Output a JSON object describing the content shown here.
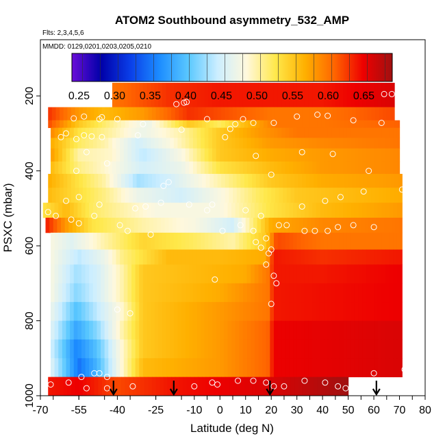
{
  "chart_data": {
    "type": "heatmap",
    "title": "ATOM2 Southbound asymmetry_532_AMP",
    "subtitle_flights": "Flts: 2,3,4,5,6",
    "subtitle_dates": "MMDD: 0129,0201,0203,0205,0210",
    "xlabel": "Latitude (deg N)",
    "ylabel": "PSXC (mbar)",
    "xlim": [
      -70,
      80
    ],
    "ylim": [
      1000,
      50
    ],
    "x_ticks": [
      "-70",
      "-55",
      "-40",
      "-25",
      "-10",
      "0",
      "10",
      "20",
      "30",
      "40",
      "50",
      "60",
      "70",
      "80"
    ],
    "x_tick_values": [
      -70,
      -55,
      -40,
      -25,
      -10,
      0,
      10,
      20,
      30,
      40,
      50,
      60,
      70,
      80
    ],
    "y_ticks": [
      "200",
      "400",
      "600",
      "800",
      "1000"
    ],
    "y_tick_values": [
      200,
      400,
      600,
      800,
      1000
    ],
    "colorbar": {
      "min": 0.24,
      "max": 0.69,
      "ticks": [
        "0.25",
        "0.30",
        "0.35",
        "0.40",
        "0.45",
        "0.50",
        "0.55",
        "0.60",
        "0.65"
      ],
      "tick_values": [
        0.25,
        0.3,
        0.35,
        0.4,
        0.45,
        0.5,
        0.55,
        0.6,
        0.65
      ],
      "stops": [
        "#6a0dd8",
        "#0000a8",
        "#0a3ee8",
        "#1c8cff",
        "#5ac8ff",
        "#cceeff",
        "#fff8dc",
        "#ffe84a",
        "#ffb000",
        "#ff6600",
        "#ee0000",
        "#a01010"
      ]
    },
    "bands": [
      {
        "p0": 165,
        "p1": 230,
        "lat0": -42,
        "lat1": 68,
        "pts": [
          [
            -42,
            0.6
          ],
          [
            -20,
            0.63
          ],
          [
            0,
            0.64
          ],
          [
            40,
            0.64
          ],
          [
            68,
            0.66
          ]
        ]
      },
      {
        "p0": 230,
        "p1": 265,
        "lat0": -67,
        "lat1": 68,
        "pts": [
          [
            -67,
            0.63
          ],
          [
            -55,
            0.58
          ],
          [
            -45,
            0.56
          ],
          [
            -30,
            0.58
          ],
          [
            -12,
            0.63
          ],
          [
            20,
            0.6
          ],
          [
            40,
            0.6
          ],
          [
            68,
            0.62
          ]
        ]
      },
      {
        "p0": 265,
        "p1": 285,
        "lat0": -67,
        "lat1": 70,
        "pts": [
          [
            -67,
            0.62
          ],
          [
            -55,
            0.55
          ],
          [
            -40,
            0.5
          ],
          [
            -28,
            0.47
          ],
          [
            -12,
            0.55
          ],
          [
            0,
            0.52
          ],
          [
            10,
            0.56
          ],
          [
            22,
            0.6
          ],
          [
            40,
            0.6
          ],
          [
            70,
            0.61
          ]
        ]
      },
      {
        "p0": 285,
        "p1": 312,
        "lat0": -66,
        "lat1": 70,
        "pts": [
          [
            -66,
            0.59
          ],
          [
            -55,
            0.53
          ],
          [
            -42,
            0.5
          ],
          [
            -30,
            0.47
          ],
          [
            -15,
            0.5
          ],
          [
            0,
            0.55
          ],
          [
            15,
            0.58
          ],
          [
            30,
            0.6
          ],
          [
            70,
            0.6
          ]
        ]
      },
      {
        "p0": 312,
        "p1": 340,
        "lat0": -66,
        "lat1": 70,
        "pts": [
          [
            -66,
            0.57
          ],
          [
            -55,
            0.52
          ],
          [
            -45,
            0.5
          ],
          [
            -32,
            0.45
          ],
          [
            -20,
            0.48
          ],
          [
            0,
            0.55
          ],
          [
            20,
            0.58
          ],
          [
            40,
            0.59
          ],
          [
            70,
            0.6
          ]
        ]
      },
      {
        "p0": 340,
        "p1": 375,
        "lat0": -66,
        "lat1": 70,
        "pts": [
          [
            -66,
            0.58
          ],
          [
            -55,
            0.5
          ],
          [
            -42,
            0.49
          ],
          [
            -30,
            0.44
          ],
          [
            -15,
            0.48
          ],
          [
            0,
            0.55
          ],
          [
            20,
            0.57
          ],
          [
            40,
            0.58
          ],
          [
            70,
            0.59
          ]
        ]
      },
      {
        "p0": 375,
        "p1": 408,
        "lat0": -66,
        "lat1": 70,
        "pts": [
          [
            -66,
            0.56
          ],
          [
            -55,
            0.51
          ],
          [
            -45,
            0.49
          ],
          [
            -30,
            0.45
          ],
          [
            -15,
            0.47
          ],
          [
            0,
            0.53
          ],
          [
            20,
            0.56
          ],
          [
            40,
            0.58
          ],
          [
            70,
            0.59
          ]
        ]
      },
      {
        "p0": 408,
        "p1": 445,
        "lat0": -67,
        "lat1": 71,
        "pts": [
          [
            -67,
            0.57
          ],
          [
            -55,
            0.53
          ],
          [
            -45,
            0.5
          ],
          [
            -32,
            0.43
          ],
          [
            -20,
            0.45
          ],
          [
            0,
            0.5
          ],
          [
            20,
            0.55
          ],
          [
            40,
            0.57
          ],
          [
            71,
            0.58
          ]
        ]
      },
      {
        "p0": 445,
        "p1": 485,
        "lat0": -67,
        "lat1": 71,
        "pts": [
          [
            -67,
            0.56
          ],
          [
            -58,
            0.54
          ],
          [
            -45,
            0.51
          ],
          [
            -32,
            0.47
          ],
          [
            -15,
            0.45
          ],
          [
            0,
            0.48
          ],
          [
            15,
            0.52
          ],
          [
            30,
            0.55
          ],
          [
            71,
            0.57
          ]
        ]
      },
      {
        "p0": 485,
        "p1": 525,
        "lat0": -69,
        "lat1": 71,
        "pts": [
          [
            -69,
            0.53
          ],
          [
            -60,
            0.56
          ],
          [
            -50,
            0.52
          ],
          [
            -38,
            0.5
          ],
          [
            -25,
            0.48
          ],
          [
            0,
            0.48
          ],
          [
            20,
            0.53
          ],
          [
            40,
            0.56
          ],
          [
            71,
            0.58
          ]
        ]
      },
      {
        "p0": 525,
        "p1": 565,
        "lat0": -68,
        "lat1": 71,
        "pts": [
          [
            -68,
            0.64
          ],
          [
            -60,
            0.58
          ],
          [
            -50,
            0.53
          ],
          [
            -30,
            0.5
          ],
          [
            -10,
            0.48
          ],
          [
            5,
            0.45
          ],
          [
            20,
            0.57
          ],
          [
            40,
            0.59
          ],
          [
            71,
            0.6
          ]
        ]
      },
      {
        "p0": 565,
        "p1": 610,
        "lat0": -66,
        "lat1": 71,
        "pts": [
          [
            -66,
            0.48
          ],
          [
            -58,
            0.46
          ],
          [
            -45,
            0.5
          ],
          [
            -30,
            0.54
          ],
          [
            -10,
            0.52
          ],
          [
            5,
            0.5
          ],
          [
            18,
            0.55
          ],
          [
            22,
            0.62
          ],
          [
            40,
            0.6
          ],
          [
            71,
            0.6
          ]
        ]
      },
      {
        "p0": 610,
        "p1": 650,
        "lat0": -66,
        "lat1": 71,
        "pts": [
          [
            -66,
            0.48
          ],
          [
            -55,
            0.44
          ],
          [
            -45,
            0.47
          ],
          [
            -38,
            0.51
          ],
          [
            -20,
            0.56
          ],
          [
            0,
            0.56
          ],
          [
            18,
            0.57
          ],
          [
            21,
            0.64
          ],
          [
            40,
            0.63
          ],
          [
            71,
            0.64
          ]
        ]
      },
      {
        "p0": 650,
        "p1": 700,
        "lat0": -66,
        "lat1": 71,
        "pts": [
          [
            -66,
            0.48
          ],
          [
            -56,
            0.43
          ],
          [
            -48,
            0.45
          ],
          [
            -38,
            0.5
          ],
          [
            -30,
            0.55
          ],
          [
            -10,
            0.56
          ],
          [
            10,
            0.57
          ],
          [
            19,
            0.6
          ],
          [
            21,
            0.64
          ],
          [
            40,
            0.64
          ],
          [
            71,
            0.65
          ]
        ]
      },
      {
        "p0": 700,
        "p1": 750,
        "lat0": -66,
        "lat1": 71,
        "pts": [
          [
            -66,
            0.48
          ],
          [
            -56,
            0.42
          ],
          [
            -48,
            0.45
          ],
          [
            -38,
            0.5
          ],
          [
            -30,
            0.55
          ],
          [
            0,
            0.57
          ],
          [
            19,
            0.6
          ],
          [
            21,
            0.64
          ],
          [
            71,
            0.65
          ]
        ]
      },
      {
        "p0": 750,
        "p1": 800,
        "lat0": -66,
        "lat1": 71,
        "pts": [
          [
            -66,
            0.47
          ],
          [
            -56,
            0.4
          ],
          [
            -48,
            0.44
          ],
          [
            -38,
            0.49
          ],
          [
            -30,
            0.55
          ],
          [
            0,
            0.58
          ],
          [
            19,
            0.6
          ],
          [
            21,
            0.64
          ],
          [
            71,
            0.65
          ]
        ]
      },
      {
        "p0": 800,
        "p1": 850,
        "lat0": -66,
        "lat1": 71,
        "pts": [
          [
            -66,
            0.46
          ],
          [
            -56,
            0.38
          ],
          [
            -48,
            0.42
          ],
          [
            -38,
            0.5
          ],
          [
            -30,
            0.55
          ],
          [
            0,
            0.58
          ],
          [
            19,
            0.61
          ],
          [
            21,
            0.65
          ],
          [
            71,
            0.66
          ]
        ]
      },
      {
        "p0": 850,
        "p1": 900,
        "lat0": -66,
        "lat1": 71,
        "pts": [
          [
            -66,
            0.45
          ],
          [
            -56,
            0.36
          ],
          [
            -48,
            0.4
          ],
          [
            -38,
            0.49
          ],
          [
            -30,
            0.55
          ],
          [
            0,
            0.58
          ],
          [
            19,
            0.61
          ],
          [
            21,
            0.65
          ],
          [
            71,
            0.66
          ]
        ]
      },
      {
        "p0": 900,
        "p1": 950,
        "lat0": -66,
        "lat1": 71,
        "pts": [
          [
            -66,
            0.46
          ],
          [
            -55,
            0.35
          ],
          [
            -48,
            0.39
          ],
          [
            -38,
            0.49
          ],
          [
            -30,
            0.56
          ],
          [
            0,
            0.58
          ],
          [
            19,
            0.61
          ],
          [
            21,
            0.65
          ],
          [
            71,
            0.66
          ]
        ]
      },
      {
        "p0": 950,
        "p1": 1000,
        "lat0": -67,
        "lat1": 50,
        "pts": [
          [
            -67,
            0.64
          ],
          [
            -55,
            0.65
          ],
          [
            -40,
            0.62
          ],
          [
            -20,
            0.64
          ],
          [
            0,
            0.65
          ],
          [
            20,
            0.66
          ],
          [
            40,
            0.68
          ],
          [
            50,
            0.69
          ]
        ]
      }
    ],
    "points": [
      [
        -55,
        195
      ],
      [
        -51,
        195
      ],
      [
        -48,
        195
      ],
      [
        -17,
        222
      ],
      [
        -14,
        218
      ],
      [
        -13,
        216
      ],
      [
        64,
        195
      ],
      [
        67,
        195
      ],
      [
        -57,
        260
      ],
      [
        -53,
        255
      ],
      [
        -47,
        262
      ],
      [
        -46,
        257
      ],
      [
        -40,
        262
      ],
      [
        -5,
        262
      ],
      [
        6,
        275
      ],
      [
        9,
        262
      ],
      [
        13,
        272
      ],
      [
        21,
        272
      ],
      [
        30,
        255
      ],
      [
        38,
        250
      ],
      [
        42,
        253
      ],
      [
        52,
        265
      ],
      [
        63,
        272
      ],
      [
        -30,
        275
      ],
      [
        -15,
        290
      ],
      [
        4,
        288
      ],
      [
        2,
        310
      ],
      [
        -32,
        305
      ],
      [
        -62,
        310
      ],
      [
        -60,
        300
      ],
      [
        -56,
        315
      ],
      [
        -53,
        305
      ],
      [
        -50,
        308
      ],
      [
        -46,
        310
      ],
      [
        -44,
        380
      ],
      [
        -52,
        350
      ],
      [
        -56,
        400
      ],
      [
        -20,
        430
      ],
      [
        -22,
        440
      ],
      [
        14,
        360
      ],
      [
        20,
        410
      ],
      [
        32,
        350
      ],
      [
        44,
        355
      ],
      [
        58,
        400
      ],
      [
        71,
        450
      ],
      [
        -60,
        480
      ],
      [
        -55,
        470
      ],
      [
        -47,
        490
      ],
      [
        -33,
        500
      ],
      [
        -29,
        495
      ],
      [
        -23,
        485
      ],
      [
        -12,
        490
      ],
      [
        -5,
        505
      ],
      [
        -3,
        490
      ],
      [
        10,
        505
      ],
      [
        16,
        520
      ],
      [
        32,
        495
      ],
      [
        41,
        480
      ],
      [
        47,
        470
      ],
      [
        56,
        455
      ],
      [
        -67,
        510
      ],
      [
        -64,
        520
      ],
      [
        -58,
        530
      ],
      [
        -55,
        540
      ],
      [
        -49,
        520
      ],
      [
        -39,
        545
      ],
      [
        -36,
        560
      ],
      [
        -27,
        570
      ],
      [
        1,
        560
      ],
      [
        8,
        545
      ],
      [
        13,
        560
      ],
      [
        18,
        580
      ],
      [
        23,
        545
      ],
      [
        26,
        545
      ],
      [
        33,
        560
      ],
      [
        37,
        560
      ],
      [
        42,
        560
      ],
      [
        46,
        550
      ],
      [
        52,
        545
      ],
      [
        60,
        550
      ],
      [
        14,
        590
      ],
      [
        16,
        605
      ],
      [
        20,
        610
      ],
      [
        19,
        620
      ],
      [
        18,
        650
      ],
      [
        21,
        680
      ],
      [
        22,
        700
      ],
      [
        -2,
        690
      ],
      [
        -40,
        770
      ],
      [
        -35,
        780
      ],
      [
        20,
        755
      ],
      [
        -49,
        940
      ],
      [
        -47,
        940
      ],
      [
        -54,
        950
      ],
      [
        -44,
        950
      ],
      [
        -52,
        980
      ],
      [
        -44,
        980
      ],
      [
        -34,
        975
      ],
      [
        -10,
        975
      ],
      [
        -3,
        965
      ],
      [
        -1,
        970
      ],
      [
        7,
        960
      ],
      [
        13,
        960
      ],
      [
        18,
        965
      ],
      [
        21,
        975
      ],
      [
        25,
        975
      ],
      [
        33,
        960
      ],
      [
        41,
        965
      ],
      [
        46,
        975
      ],
      [
        49,
        980
      ],
      [
        55,
        960
      ],
      [
        -59,
        965
      ],
      [
        -66,
        970
      ],
      [
        72,
        930
      ],
      [
        60,
        940
      ]
    ],
    "arrows_lat": [
      -41.5,
      -18,
      19.5,
      61
    ]
  }
}
